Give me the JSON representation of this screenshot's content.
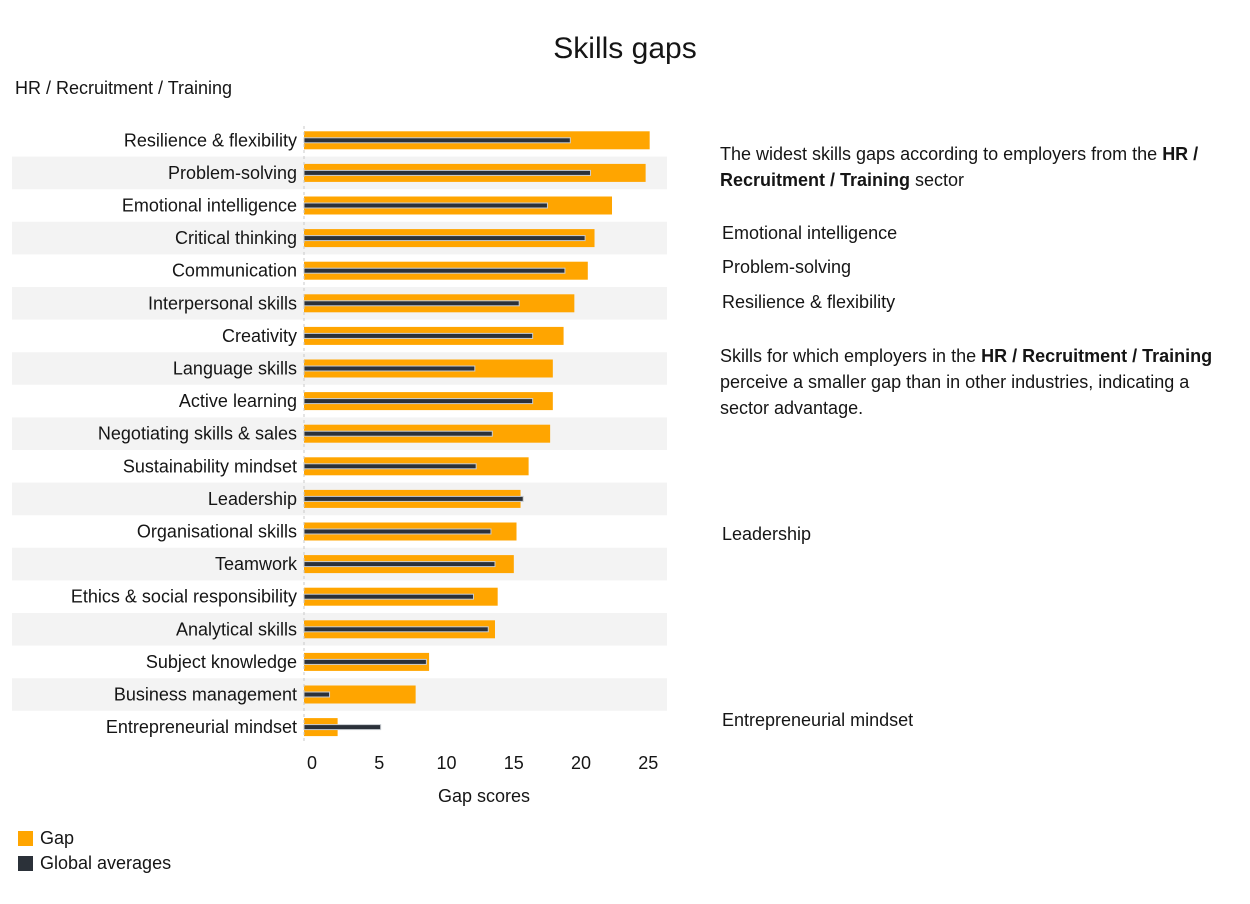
{
  "title": "Skills gaps",
  "subtitle": "HR / Recruitment / Training",
  "colors": {
    "gap": "#FFA500",
    "global": "#2B3139",
    "band": "#F3F3F3",
    "text": "#151515"
  },
  "chart_data": {
    "type": "bar",
    "orientation": "horizontal",
    "title": "Skills gaps",
    "xlabel": "Gap scores",
    "ylabel": "",
    "xlim": [
      0,
      26
    ],
    "xticks": [
      0,
      5,
      10,
      15,
      20,
      25
    ],
    "categories": [
      "Resilience & flexibility",
      "Problem-solving",
      "Emotional intelligence",
      "Critical thinking",
      "Communication",
      "Interpersonal skills",
      "Creativity",
      "Language skills",
      "Active learning",
      "Negotiating skills & sales",
      "Sustainability mindset",
      "Leadership",
      "Organisational skills",
      "Teamwork",
      "Ethics & social responsibility",
      "Analytical skills",
      "Subject knowledge",
      "Business management",
      "Entrepreneurial mindset"
    ],
    "series": [
      {
        "name": "Gap",
        "values": [
          25.7,
          25.4,
          22.9,
          21.6,
          21.1,
          20.1,
          19.3,
          18.5,
          18.5,
          18.3,
          16.7,
          16.1,
          15.8,
          15.6,
          14.4,
          14.2,
          9.3,
          8.3,
          2.5
        ]
      },
      {
        "name": "Global averages",
        "values": [
          19.8,
          21.3,
          18.1,
          20.9,
          19.4,
          16.0,
          17.0,
          12.7,
          17.0,
          14.0,
          12.8,
          16.3,
          13.9,
          14.2,
          12.6,
          13.7,
          9.1,
          1.9,
          5.7
        ]
      }
    ],
    "legend": "bottom-left"
  },
  "legend": [
    {
      "label": "Gap"
    },
    {
      "label": "Global averages"
    }
  ],
  "panel": {
    "widest_prefix": "The widest skills gaps according to employers from the ",
    "widest_bold": "HR / Recruitment / Training",
    "widest_suffix": " sector",
    "widest_skills": [
      "Emotional intelligence",
      "Problem-solving",
      "Resilience & flexibility"
    ],
    "smaller_prefix": "Skills for which employers in the ",
    "smaller_bold": "HR / Recruitment / Training",
    "smaller_suffix": " perceive a smaller gap than in other industries, indicating a sector advantage.",
    "advantage_skills": [
      "Leadership",
      "Entrepreneurial mindset"
    ]
  }
}
